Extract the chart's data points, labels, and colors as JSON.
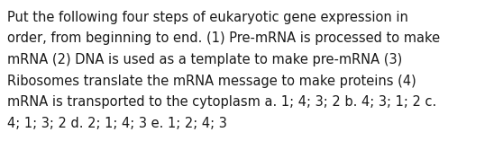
{
  "text_lines": [
    "Put the following four steps of eukaryotic gene expression in",
    "order, from beginning to end. (1) Pre-mRNA is processed to make",
    "mRNA (2) DNA is used as a template to make pre-mRNA (3)",
    "Ribosomes translate the mRNA message to make proteins (4)",
    "mRNA is transported to the cytoplasm a. 1; 4; 3; 2 b. 4; 3; 1; 2 c.",
    "4; 1; 3; 2 d. 2; 1; 4; 3 e. 1; 2; 4; 3"
  ],
  "background_color": "#ffffff",
  "text_color": "#1a1a1a",
  "font_size": 10.5,
  "fig_width": 5.58,
  "fig_height": 1.67,
  "dpi": 100
}
